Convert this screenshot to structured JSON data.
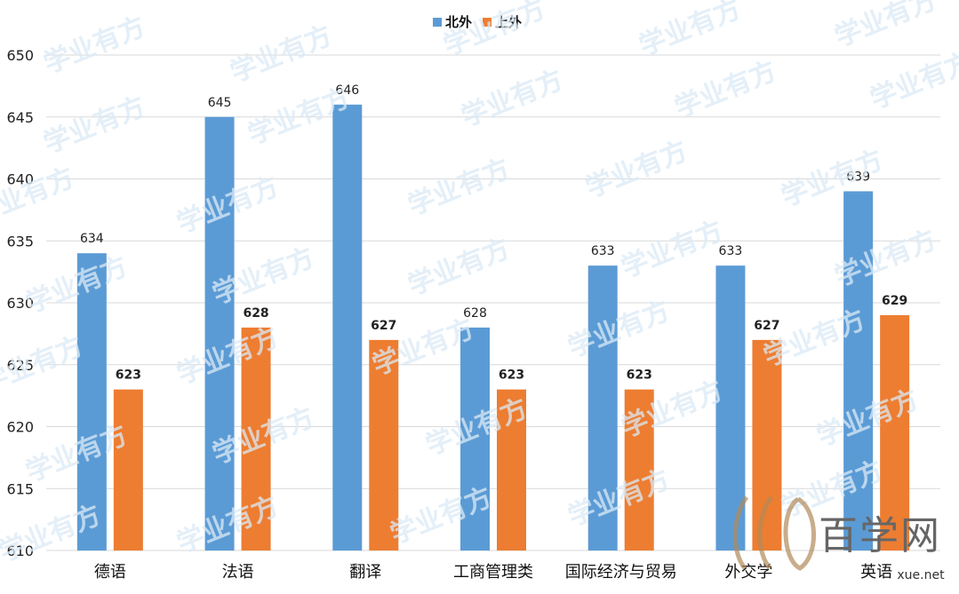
{
  "chart_data": {
    "type": "bar",
    "categories": [
      "德语",
      "法语",
      "翻译",
      "工商管理类",
      "国际经济与贸易",
      "外交学",
      "英语"
    ],
    "series": [
      {
        "name": "北外",
        "values": [
          634,
          645,
          646,
          628,
          633,
          633,
          639
        ],
        "color": "#5b9bd5"
      },
      {
        "name": "上外",
        "values": [
          623,
          628,
          627,
          623,
          623,
          627,
          629
        ],
        "color": "#ed7d31"
      }
    ],
    "ylim": [
      610,
      650
    ],
    "yticks": [
      610,
      615,
      620,
      625,
      630,
      635,
      640,
      645,
      650
    ],
    "title": "",
    "xlabel": "",
    "ylabel": "",
    "grid": true,
    "legend_position": "top-center",
    "data_labels": true
  },
  "watermark": {
    "text": "学业有方"
  },
  "logo": {
    "glyph": "⅏",
    "name": "百学网",
    "url_fragment": "xue.net"
  }
}
